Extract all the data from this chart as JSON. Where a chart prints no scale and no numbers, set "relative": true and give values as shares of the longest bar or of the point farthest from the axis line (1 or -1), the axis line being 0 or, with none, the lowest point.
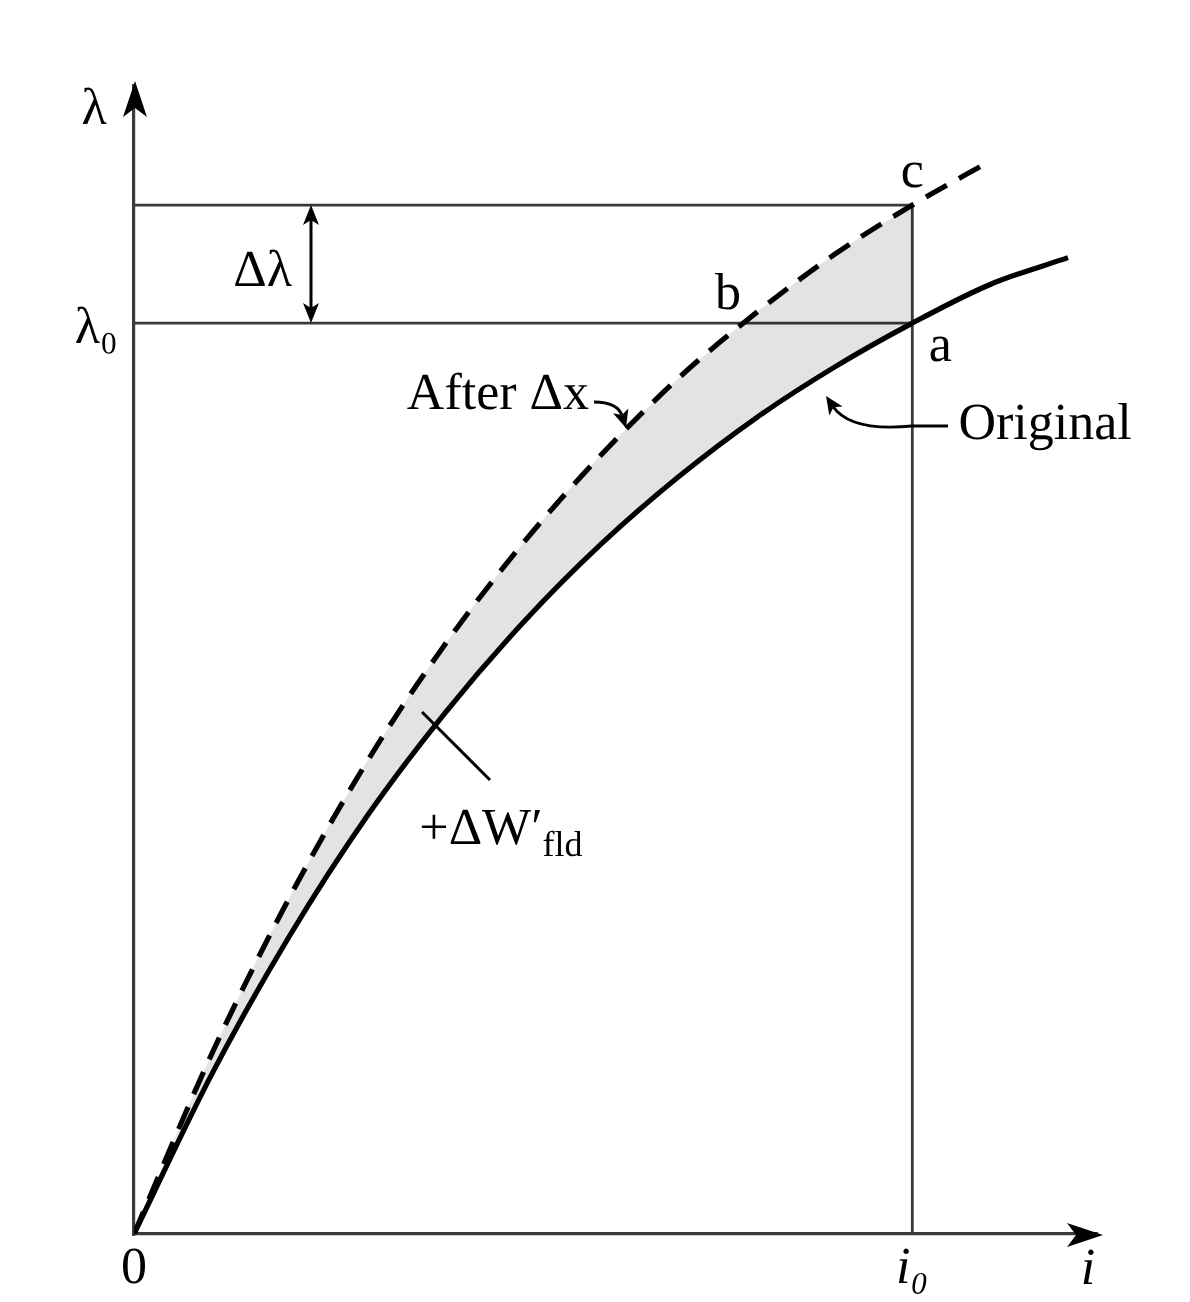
{
  "chart_data": {
    "type": "line",
    "relative": true,
    "xlabel": "i",
    "ylabel": "λ",
    "categories": [
      "0",
      null,
      null,
      null,
      null,
      null,
      null,
      null,
      null,
      null,
      "i₀",
      null,
      null
    ],
    "series": [
      {
        "name": "Original",
        "color": "#000000",
        "values": [
          0,
          0.149,
          0.278,
          0.39,
          0.486,
          0.57,
          0.643,
          0.706,
          0.761,
          0.808,
          0.849,
          0.885,
          0.91
        ]
      },
      {
        "name": "After Δx",
        "color": "#000000",
        "line_style": "dashed",
        "values": [
          0,
          0.168,
          0.314,
          0.441,
          0.55,
          0.644,
          0.726,
          0.798,
          0.859,
          0.913,
          0.959,
          1,
          null
        ],
        "lower": [
          0,
          0.149,
          0.278,
          0.39,
          0.486,
          0.57,
          0.643,
          0.706,
          0.761,
          0.808,
          0.849,
          null,
          null
        ],
        "upper": [
          0,
          0.168,
          0.314,
          0.441,
          0.55,
          0.644,
          0.726,
          0.798,
          0.859,
          0.913,
          0.959,
          null,
          null
        ]
      }
    ],
    "ref_lines": [
      {
        "axis": "y",
        "value": 0.849,
        "label": "λ₀"
      },
      {
        "axis": "y",
        "value": 0.959
      },
      {
        "axis": "x",
        "value": "i₀"
      }
    ],
    "annotations": [
      {
        "text": "a",
        "x": "i₀",
        "y": 0.849
      },
      "b",
      {
        "text": "c",
        "x": "i₀",
        "y": 0.959
      },
      "Δλ",
      "+ΔW′$_{fld}$"
    ]
  }
}
